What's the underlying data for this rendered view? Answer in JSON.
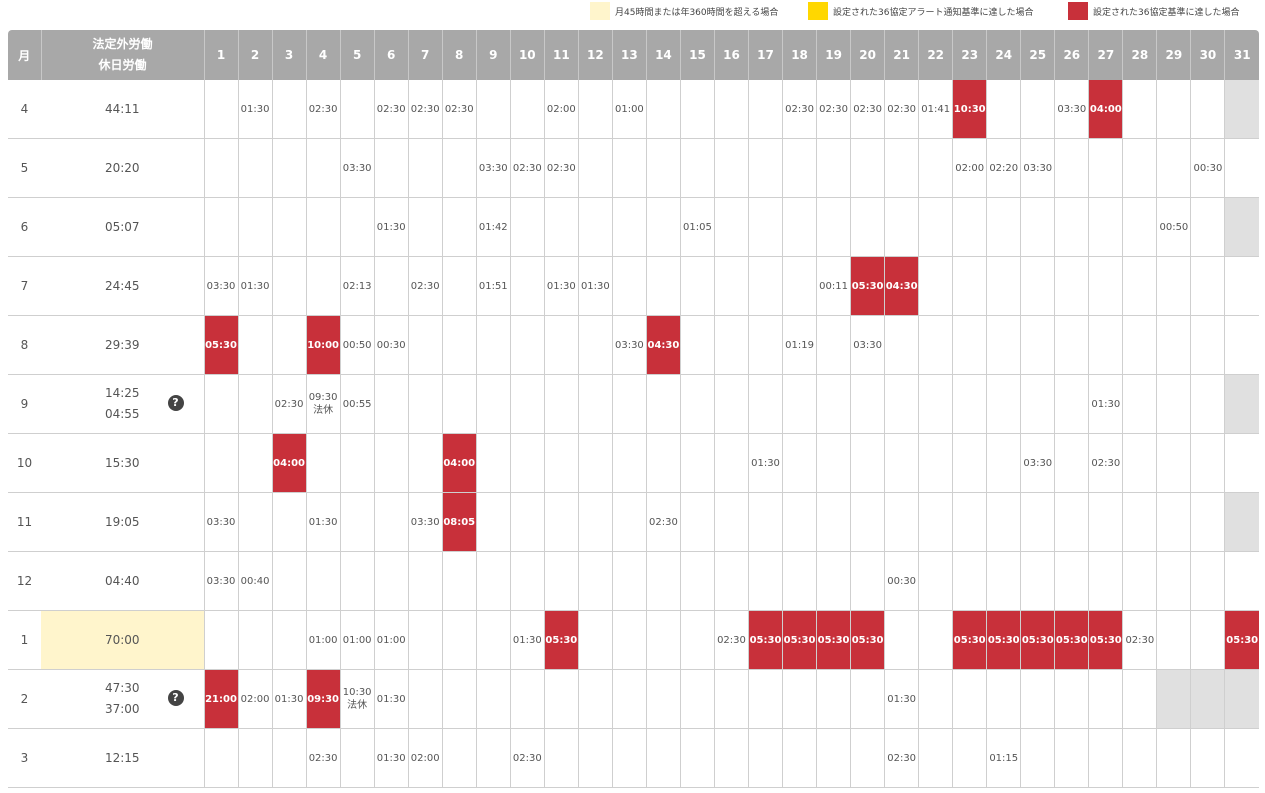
{
  "legend": [
    {
      "label": "月45時間または年360時間を超える場合",
      "color": "#fff5cc"
    },
    {
      "label": "設定された36協定アラート通知基準に達した場合",
      "color": "#ffd700"
    },
    {
      "label": "設定された36協定基準に達した場合",
      "color": "#c8303a"
    }
  ],
  "header": {
    "month_label": "月",
    "total_label_1": "法定外労働",
    "total_label_2": "休日労働",
    "days": [
      "1",
      "2",
      "3",
      "4",
      "5",
      "6",
      "7",
      "8",
      "9",
      "10",
      "11",
      "12",
      "13",
      "14",
      "15",
      "16",
      "17",
      "18",
      "19",
      "20",
      "21",
      "22",
      "23",
      "24",
      "25",
      "26",
      "27",
      "28",
      "29",
      "30",
      "31"
    ]
  },
  "rows": [
    {
      "month": "4",
      "total": "44:11",
      "cells": {
        "2": "01:30",
        "4": "02:30",
        "6": "02:30",
        "7": "02:30",
        "8": "02:30",
        "11": "02:00",
        "13": "01:00",
        "18": "02:30",
        "19": "02:30",
        "20": "02:30",
        "21": "02:30",
        "22": "01:41",
        "23": "10:30",
        "26": "03:30",
        "27": "04:00"
      },
      "alerts": [
        23,
        27
      ],
      "na": [
        31
      ]
    },
    {
      "month": "5",
      "total": "20:20",
      "cells": {
        "5": "03:30",
        "9": "03:30",
        "10": "02:30",
        "11": "02:30",
        "23": "02:00",
        "24": "02:20",
        "25": "03:30",
        "30": "00:30"
      },
      "alerts": [],
      "na": []
    },
    {
      "month": "6",
      "total": "05:07",
      "cells": {
        "6": "01:30",
        "9": "01:42",
        "15": "01:05",
        "29": "00:50"
      },
      "alerts": [],
      "na": [
        31
      ]
    },
    {
      "month": "7",
      "total": "24:45",
      "cells": {
        "1": "03:30",
        "2": "01:30",
        "5": "02:13",
        "7": "02:30",
        "9": "01:51",
        "11": "01:30",
        "12": "01:30",
        "19": "00:11",
        "20": "05:30",
        "21": "04:30"
      },
      "alerts": [
        20,
        21
      ],
      "na": []
    },
    {
      "month": "8",
      "total": "29:39",
      "cells": {
        "1": "05:30",
        "4": "10:00",
        "5": "00:50",
        "6": "00:30",
        "13": "03:30",
        "14": "04:30",
        "18": "01:19",
        "20": "03:30"
      },
      "alerts": [
        1,
        4,
        14
      ],
      "na": []
    },
    {
      "month": "9",
      "total": "14:25",
      "total2": "04:55",
      "help": true,
      "cells": {
        "3": "02:30",
        "4": "09:30",
        "5": "00:55",
        "27": "01:30"
      },
      "subs": {
        "4": "法休"
      },
      "alerts": [],
      "na": [
        31
      ]
    },
    {
      "month": "10",
      "total": "15:30",
      "cells": {
        "3": "04:00",
        "8": "04:00",
        "17": "01:30",
        "25": "03:30",
        "27": "02:30"
      },
      "alerts": [
        3,
        8
      ],
      "na": []
    },
    {
      "month": "11",
      "total": "19:05",
      "cells": {
        "1": "03:30",
        "4": "01:30",
        "7": "03:30",
        "8": "08:05",
        "14": "02:30"
      },
      "alerts": [
        8
      ],
      "na": [
        31
      ]
    },
    {
      "month": "12",
      "total": "04:40",
      "cells": {
        "1": "03:30",
        "2": "00:40",
        "21": "00:30"
      },
      "alerts": [],
      "na": []
    },
    {
      "month": "1",
      "total": "70:00",
      "highlight": true,
      "cells": {
        "4": "01:00",
        "5": "01:00",
        "6": "01:00",
        "10": "01:30",
        "11": "05:30",
        "16": "02:30",
        "17": "05:30",
        "18": "05:30",
        "19": "05:30",
        "20": "05:30",
        "23": "05:30",
        "24": "05:30",
        "25": "05:30",
        "26": "05:30",
        "27": "05:30",
        "28": "02:30",
        "31": "05:30"
      },
      "alerts": [
        11,
        17,
        18,
        19,
        20,
        23,
        24,
        25,
        26,
        27,
        31
      ],
      "na": []
    },
    {
      "month": "2",
      "total": "47:30",
      "total2": "37:00",
      "help": true,
      "cells": {
        "1": "21:00",
        "2": "02:00",
        "3": "01:30",
        "4": "09:30",
        "5": "10:30",
        "6": "01:30",
        "21": "01:30"
      },
      "subs": {
        "5": "法休"
      },
      "alerts": [
        1,
        4
      ],
      "na": [
        29,
        30,
        31
      ]
    },
    {
      "month": "3",
      "total": "12:15",
      "cells": {
        "4": "02:30",
        "6": "01:30",
        "7": "02:00",
        "10": "02:30",
        "21": "02:30",
        "24": "01:15"
      },
      "alerts": [],
      "na": []
    }
  ],
  "help_glyph": "?"
}
